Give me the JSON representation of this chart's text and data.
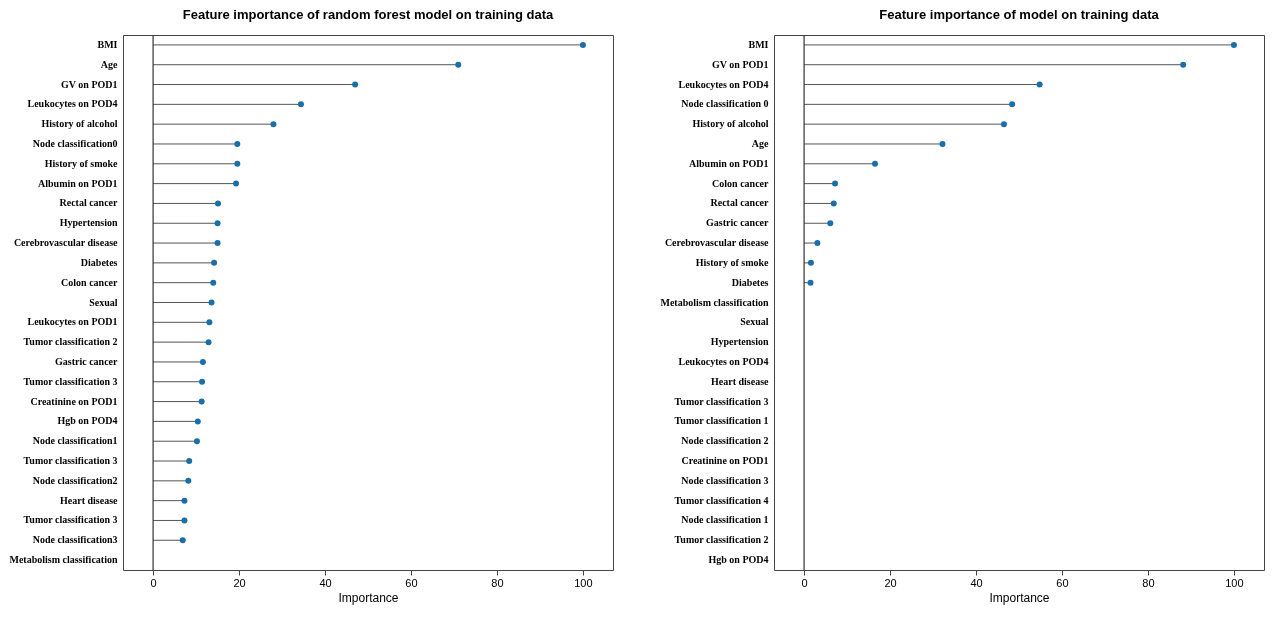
{
  "chart_data": [
    {
      "type": "lollipop",
      "title": "Feature importance of random forest model on training data",
      "xlabel": "Importance",
      "categories": [
        "BMI",
        "Age",
        "GV on POD1",
        "Leukocytes on POD4",
        "History of alcohol",
        "Node classification0",
        "History of smoke",
        "Albumin on POD1",
        "Rectal cancer",
        "Hypertension",
        "Cerebrovascular disease",
        "Diabetes",
        "Colon cancer",
        "Sexual",
        "Leukocytes on POD1",
        "Tumor classification 2",
        "Gastric cancer",
        "Tumor classification 3",
        "Creatinine on POD1",
        "Hgb on POD4",
        "Node classification1",
        "Tumor classification 3",
        "Node classification2",
        "Heart disease",
        "Tumor classification 3",
        "Node classification3",
        "Metabolism classification"
      ],
      "orientation": "horizontal",
      "series": [
        {
          "color": "#1a6fa8",
          "values": [
            100,
            71,
            47,
            34.4,
            28,
            19.6,
            19.6,
            19.3,
            15.1,
            15,
            15,
            14.2,
            14,
            13.6,
            13.1,
            12.9,
            11.6,
            11.4,
            11.3,
            10.4,
            10.2,
            8.4,
            8.2,
            7.3,
            7.3,
            6.9,
            null
          ]
        }
      ],
      "xlim": [
        -7,
        107
      ],
      "xticks": [
        0,
        20,
        40,
        60,
        80,
        100
      ],
      "marker": "circle",
      "ref_lines": [
        {
          "axis": "x",
          "value": 0
        }
      ]
    },
    {
      "type": "lollipop",
      "title": "Feature importance of model on training data",
      "xlabel": "Importance",
      "categories": [
        "BMI",
        "GV on POD1",
        "Leukocytes on POD4",
        "Node classification 0",
        "History of alcohol",
        "Age",
        "Albumin on POD1",
        "Colon cancer",
        "Rectal cancer",
        "Gastric cancer",
        "Cerebrovascular disease",
        "History of smoke",
        "Diabetes",
        "Metabolism classification",
        "Sexual",
        "Hypertension",
        "Leukocytes on POD4",
        "Heart disease",
        "Tumor classification 3",
        "Tumor classification 1",
        "Node classification 2",
        "Creatinine on POD1",
        "Node classification 3",
        "Tumor classification 4",
        "Node classification 1",
        "Tumor classification 2",
        "Hgb on POD4"
      ],
      "orientation": "horizontal",
      "series": [
        {
          "color": "#1a6fa8",
          "values": [
            100,
            88.2,
            54.8,
            48.4,
            46.5,
            32.2,
            16.5,
            7.2,
            6.9,
            6.1,
            3.1,
            1.6,
            1.5,
            null,
            null,
            null,
            null,
            null,
            null,
            null,
            null,
            null,
            null,
            null,
            null,
            null,
            null
          ]
        }
      ],
      "xlim": [
        -7,
        107
      ],
      "xticks": [
        0,
        20,
        40,
        60,
        80,
        100
      ],
      "marker": "circle",
      "ref_lines": [
        {
          "axis": "x",
          "value": 0
        }
      ]
    }
  ]
}
